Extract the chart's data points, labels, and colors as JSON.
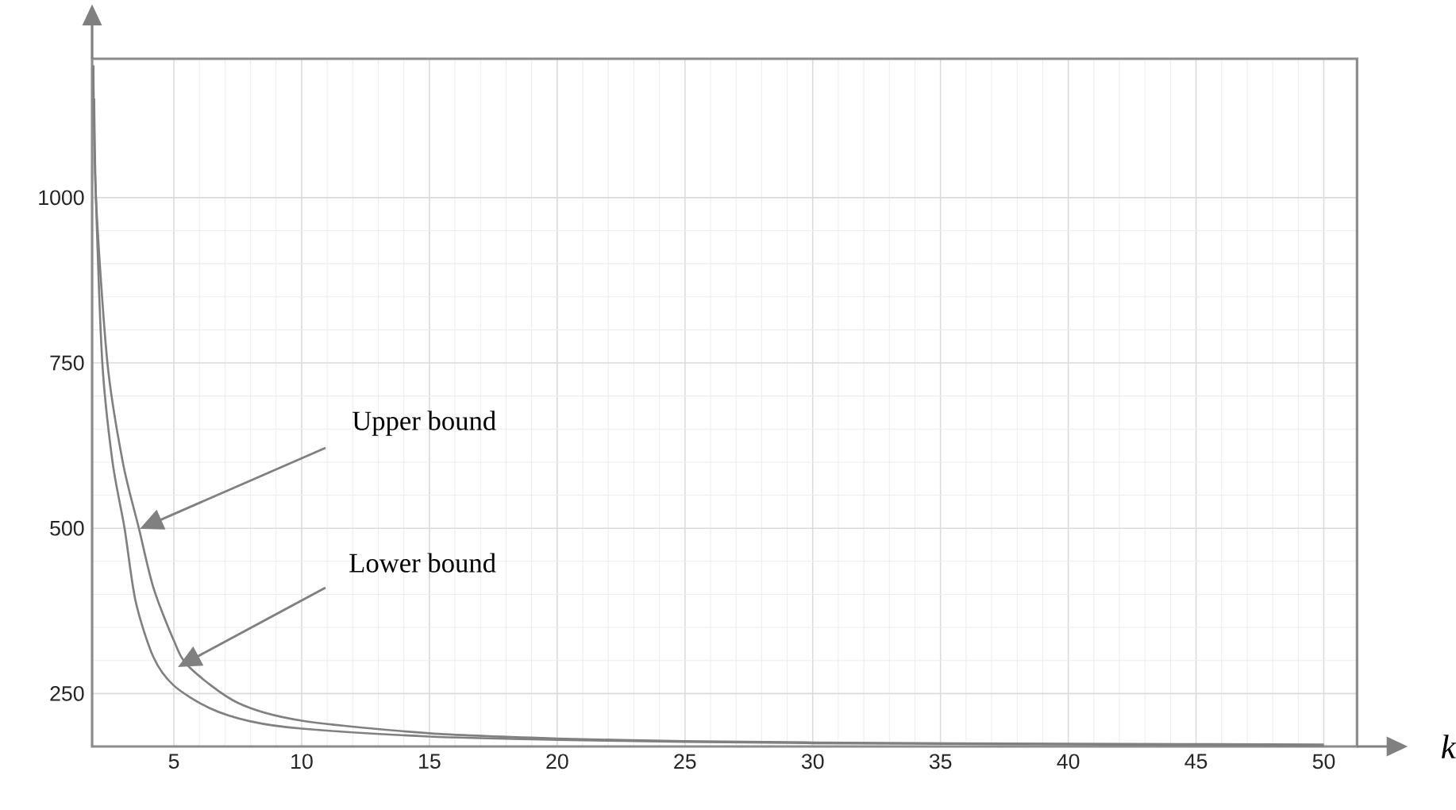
{
  "chart_data": {
    "type": "line",
    "xlabel": "k",
    "xlim": [
      1.8,
      51.3
    ],
    "ylim": [
      170,
      1210
    ],
    "xticks": [
      5,
      10,
      15,
      20,
      25,
      30,
      35,
      40,
      45,
      50
    ],
    "yticks": [
      250,
      500,
      750,
      1000
    ],
    "grid": true,
    "marker": "none",
    "line_style": "solid",
    "series": [
      {
        "color": "#808080",
        "x": [
          1.88,
          1.95,
          2.2,
          2.6,
          3.07,
          3.5,
          4.2,
          5,
          6.4,
          8,
          10,
          15,
          20,
          25,
          30,
          40,
          50
        ],
        "values": [
          1150,
          1000,
          750,
          600,
          500,
          390,
          305,
          262,
          228,
          208,
          197,
          185,
          180,
          177,
          175,
          173,
          171
        ]
      },
      {
        "color": "#808080",
        "x": [
          1.85,
          1.95,
          2.4,
          3,
          3.63,
          4.2,
          5,
          5.6,
          7.5,
          10,
          15,
          20,
          25,
          30,
          40,
          50
        ],
        "values": [
          1200,
          1000,
          750,
          600,
          500,
          410,
          330,
          290,
          236,
          209,
          190,
          182,
          178,
          176,
          174,
          173
        ]
      }
    ],
    "annotations": [
      "Upper bound",
      "Lower bound"
    ]
  }
}
